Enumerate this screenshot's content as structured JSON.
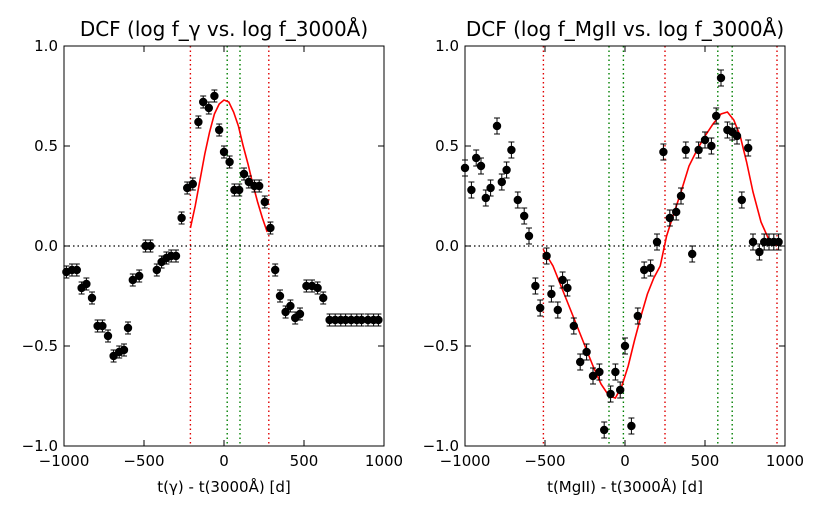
{
  "chart_data": [
    {
      "type": "scatter",
      "title": "DCF (log f_γ vs. log f_3000Å)",
      "xlabel": "t(γ) - t(3000Å) [d]",
      "ylabel": "",
      "xlim": [
        -1000,
        1000
      ],
      "ylim": [
        -1.0,
        1.0
      ],
      "xticks": [
        -1000,
        -500,
        0,
        500,
        1000
      ],
      "yticks": [
        -1.0,
        -0.5,
        0.0,
        0.5,
        1.0
      ],
      "xtick_labels": [
        "−1000",
        "−500",
        "0",
        "500",
        "1000"
      ],
      "ytick_labels": [
        "−1.0",
        "−0.5",
        "0.0",
        "0.5",
        "1.0"
      ],
      "series": [
        {
          "name": "DCF",
          "x": [
            -985,
            -950,
            -920,
            -890,
            -860,
            -825,
            -790,
            -760,
            -725,
            -690,
            -655,
            -625,
            -600,
            -570,
            -530,
            -490,
            -460,
            -420,
            -390,
            -360,
            -330,
            -300,
            -265,
            -230,
            -195,
            -160,
            -130,
            -95,
            -60,
            -30,
            0,
            35,
            65,
            95,
            125,
            155,
            190,
            220,
            255,
            290,
            320,
            350,
            385,
            415,
            445,
            475,
            515,
            550,
            585,
            620,
            660,
            695,
            730,
            760,
            795,
            830,
            860,
            900,
            935,
            965
          ],
          "y": [
            -0.13,
            -0.12,
            -0.12,
            -0.21,
            -0.19,
            -0.26,
            -0.4,
            -0.4,
            -0.45,
            -0.55,
            -0.53,
            -0.52,
            -0.41,
            -0.17,
            -0.15,
            0.0,
            0.0,
            -0.12,
            -0.08,
            -0.06,
            -0.05,
            -0.05,
            0.14,
            0.29,
            0.31,
            0.62,
            0.72,
            0.69,
            0.75,
            0.58,
            0.47,
            0.42,
            0.28,
            0.28,
            0.36,
            0.32,
            0.3,
            0.3,
            0.22,
            0.09,
            -0.12,
            -0.25,
            -0.33,
            -0.3,
            -0.36,
            -0.34,
            -0.2,
            -0.2,
            -0.21,
            -0.26,
            -0.37,
            -0.37,
            -0.37,
            -0.37,
            -0.37,
            -0.37,
            -0.37,
            -0.37,
            -0.37,
            -0.37
          ],
          "error": [
            0.03,
            0.03,
            0.03,
            0.03,
            0.03,
            0.03,
            0.03,
            0.03,
            0.03,
            0.03,
            0.03,
            0.03,
            0.03,
            0.03,
            0.03,
            0.03,
            0.03,
            0.03,
            0.03,
            0.03,
            0.03,
            0.03,
            0.03,
            0.03,
            0.03,
            0.03,
            0.03,
            0.03,
            0.03,
            0.03,
            0.03,
            0.03,
            0.03,
            0.03,
            0.03,
            0.03,
            0.03,
            0.03,
            0.03,
            0.03,
            0.03,
            0.03,
            0.03,
            0.03,
            0.03,
            0.03,
            0.03,
            0.03,
            0.03,
            0.03,
            0.03,
            0.03,
            0.03,
            0.03,
            0.03,
            0.03,
            0.03,
            0.03,
            0.03,
            0.03
          ]
        }
      ],
      "fit": {
        "x": [
          -210,
          -180,
          -150,
          -120,
          -90,
          -60,
          -30,
          0,
          30,
          60,
          90,
          120,
          150,
          180,
          210,
          240,
          270
        ],
        "y": [
          0.09,
          0.2,
          0.33,
          0.46,
          0.57,
          0.66,
          0.71,
          0.73,
          0.72,
          0.67,
          0.6,
          0.5,
          0.41,
          0.31,
          0.22,
          0.14,
          0.07
        ],
        "color": "#ff0000"
      },
      "vlines_red": [
        -210,
        280
      ],
      "vlines_green": [
        20,
        100
      ],
      "hline": 0.0
    },
    {
      "type": "scatter",
      "title": "DCF (log f_MgII vs. log f_3000Å)",
      "xlabel": "t(MgII) - t(3000Å) [d]",
      "ylabel": "",
      "xlim": [
        -1000,
        1000
      ],
      "ylim": [
        -1.0,
        1.0
      ],
      "xticks": [
        -1000,
        -500,
        0,
        500,
        1000
      ],
      "yticks": [
        -1.0,
        -0.5,
        0.0,
        0.5,
        1.0
      ],
      "xtick_labels": [
        "−1000",
        "−500",
        "0",
        "500",
        "1000"
      ],
      "ytick_labels": [
        "−1.0",
        "−0.5",
        "0.0",
        "0.5",
        "1.0"
      ],
      "series": [
        {
          "name": "DCF",
          "x": [
            -1000,
            -960,
            -930,
            -900,
            -870,
            -840,
            -800,
            -770,
            -740,
            -710,
            -670,
            -630,
            -600,
            -560,
            -530,
            -490,
            -460,
            -420,
            -390,
            -360,
            -320,
            -280,
            -240,
            -200,
            -160,
            -130,
            -90,
            -60,
            -30,
            0,
            40,
            80,
            120,
            160,
            200,
            240,
            280,
            320,
            350,
            380,
            420,
            460,
            500,
            540,
            570,
            600,
            640,
            670,
            700,
            730,
            770,
            800,
            840,
            870,
            900,
            930,
            960
          ],
          "y": [
            0.39,
            0.28,
            0.44,
            0.4,
            0.24,
            0.29,
            0.6,
            0.32,
            0.38,
            0.48,
            0.23,
            0.15,
            0.05,
            -0.2,
            -0.31,
            -0.05,
            -0.24,
            -0.32,
            -0.17,
            -0.21,
            -0.4,
            -0.58,
            -0.53,
            -0.65,
            -0.63,
            -0.92,
            -0.74,
            -0.63,
            -0.72,
            -0.5,
            -0.9,
            -0.35,
            -0.12,
            -0.11,
            0.02,
            0.47,
            0.14,
            0.17,
            0.25,
            0.48,
            -0.04,
            0.48,
            0.53,
            0.5,
            0.65,
            0.84,
            0.58,
            0.57,
            0.55,
            0.23,
            0.49,
            0.02,
            -0.03,
            0.02,
            0.02,
            0.02,
            0.02
          ],
          "error": [
            0.04,
            0.04,
            0.04,
            0.04,
            0.04,
            0.04,
            0.04,
            0.04,
            0.04,
            0.04,
            0.04,
            0.04,
            0.04,
            0.04,
            0.04,
            0.04,
            0.04,
            0.04,
            0.04,
            0.04,
            0.04,
            0.04,
            0.04,
            0.04,
            0.04,
            0.04,
            0.04,
            0.04,
            0.04,
            0.04,
            0.04,
            0.04,
            0.04,
            0.04,
            0.04,
            0.04,
            0.04,
            0.04,
            0.04,
            0.04,
            0.04,
            0.04,
            0.04,
            0.04,
            0.04,
            0.04,
            0.04,
            0.04,
            0.04,
            0.04,
            0.04,
            0.04,
            0.04,
            0.04,
            0.04,
            0.04,
            0.04
          ]
        }
      ],
      "fit": {
        "x": [
          -510,
          -450,
          -400,
          -350,
          -300,
          -250,
          -200,
          -150,
          -100,
          -60,
          -20,
          20,
          60,
          100,
          140,
          180,
          220,
          260,
          300,
          350,
          400,
          450,
          500,
          550,
          600,
          640,
          680,
          720,
          760,
          800,
          850,
          900,
          950
        ],
        "y": [
          -0.02,
          -0.1,
          -0.2,
          -0.3,
          -0.4,
          -0.5,
          -0.6,
          -0.69,
          -0.75,
          -0.76,
          -0.7,
          -0.6,
          -0.47,
          -0.35,
          -0.24,
          -0.16,
          -0.1,
          0.05,
          0.15,
          0.27,
          0.4,
          0.48,
          0.55,
          0.61,
          0.66,
          0.67,
          0.63,
          0.55,
          0.42,
          0.27,
          0.12,
          0.03,
          0.0
        ],
        "color": "#ff0000"
      },
      "vlines_red": [
        -510,
        250,
        950
      ],
      "vlines_green": [
        -100,
        -10,
        580,
        670
      ],
      "hline": 0.0
    }
  ]
}
